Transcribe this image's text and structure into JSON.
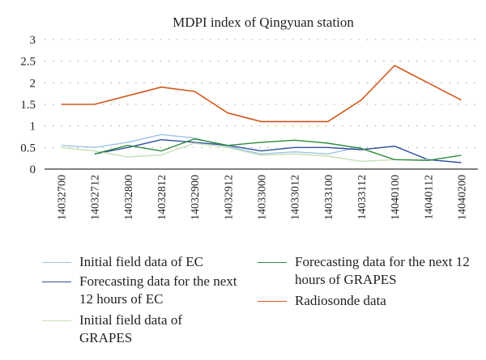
{
  "chart_data": {
    "type": "line",
    "title": "MDPI index of Qingyuan station",
    "xlabel": "",
    "ylabel": "",
    "ylim": [
      0,
      3
    ],
    "yticks": [
      "0",
      "0.5",
      "1",
      "1.5",
      "2",
      "2.5",
      "3"
    ],
    "grid": "horizontal dotted",
    "legend_position": "bottom",
    "x": [
      "14032700",
      "14032712",
      "14032800",
      "14032812",
      "14032900",
      "14032912",
      "14033000",
      "14033012",
      "14033100",
      "14033112",
      "14040100",
      "14040112",
      "14040200"
    ],
    "series": [
      {
        "name": "Initial field data of EC",
        "color": "#9dc3e6",
        "values": [
          0.55,
          0.5,
          0.62,
          0.8,
          0.72,
          0.52,
          0.35,
          0.4,
          0.35,
          0.52,
          null,
          null,
          null
        ]
      },
      {
        "name": "Forecasting data for the next 12 hours of EC",
        "color": "#2e4f9e",
        "values": [
          null,
          0.35,
          0.5,
          0.68,
          0.62,
          0.55,
          0.42,
          0.5,
          0.5,
          0.45,
          0.53,
          0.22,
          0.15
        ]
      },
      {
        "name": "Initial field data of GRAPES",
        "color": "#c6e0b4",
        "values": [
          0.5,
          0.42,
          0.28,
          0.33,
          0.6,
          0.5,
          0.32,
          0.35,
          0.3,
          0.18,
          0.22,
          0.22,
          null
        ]
      },
      {
        "name": "Forecasting data for the next 12 hours of GRAPES",
        "color": "#2e8b3e",
        "values": [
          null,
          0.35,
          0.55,
          0.42,
          0.7,
          0.55,
          0.62,
          0.67,
          0.6,
          0.48,
          0.22,
          0.2,
          0.32
        ]
      },
      {
        "name": "Radiosonde data",
        "color": "#d2581a",
        "values": [
          1.5,
          1.5,
          1.7,
          1.9,
          1.8,
          1.3,
          1.1,
          1.1,
          1.1,
          1.6,
          2.4,
          2.0,
          1.6
        ]
      }
    ]
  }
}
